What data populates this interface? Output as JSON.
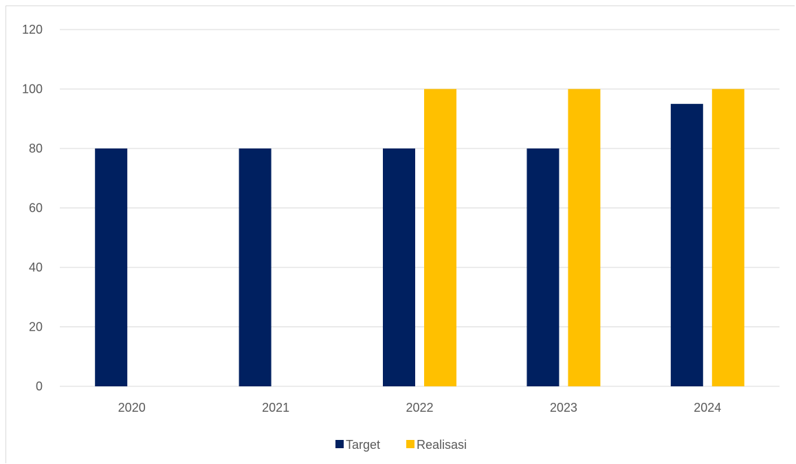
{
  "chart_data": {
    "type": "bar",
    "categories": [
      "2020",
      "2021",
      "2022",
      "2023",
      "2024"
    ],
    "series": [
      {
        "name": "Target",
        "color": "#002060",
        "values": [
          80,
          80,
          80,
          80,
          95
        ]
      },
      {
        "name": "Realisasi",
        "color": "#FFC000",
        "values": [
          0,
          0,
          100,
          100,
          100
        ]
      }
    ],
    "ylim": [
      0,
      120
    ],
    "yticks": [
      0,
      20,
      40,
      60,
      80,
      100,
      120
    ],
    "grid": true,
    "legend_position": "bottom",
    "title": "",
    "xlabel": "",
    "ylabel": ""
  }
}
